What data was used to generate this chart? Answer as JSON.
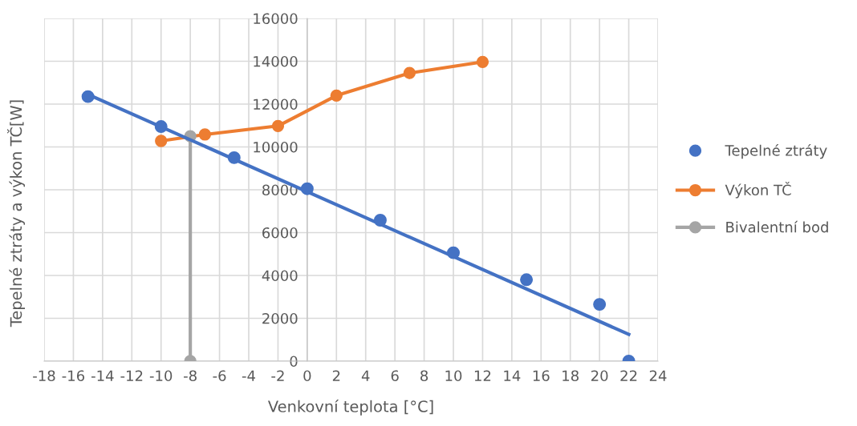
{
  "chart_data": {
    "type": "scatter",
    "xlabel": "Venkovní teplota [°C]",
    "ylabel": "Tepelné ztráty a výkon TČ[W]",
    "xlim": [
      -18,
      24
    ],
    "xticks": [
      -18,
      -16,
      -14,
      -12,
      -10,
      -8,
      -6,
      -4,
      -2,
      0,
      2,
      4,
      6,
      8,
      10,
      12,
      14,
      16,
      18,
      20,
      22,
      24
    ],
    "ylim": [
      0,
      16000
    ],
    "yticks": [
      0,
      2000,
      4000,
      6000,
      8000,
      10000,
      12000,
      14000,
      16000
    ],
    "grid": true,
    "legend": "right",
    "series": [
      {
        "name": "Tepelné ztráty",
        "color": "#4472c4",
        "marker": "circle",
        "x": [
          -15,
          -10,
          -5,
          0,
          5,
          10,
          15,
          20,
          22
        ],
        "values": [
          12350,
          10950,
          9500,
          8050,
          6580,
          5060,
          3800,
          2650,
          0
        ]
      },
      {
        "name": "Výkon TČ",
        "type": "line",
        "color": "#ed7d31",
        "marker": "circle",
        "x": [
          -10,
          -7,
          -2,
          2,
          7,
          12
        ],
        "values": [
          10280,
          10580,
          10980,
          12400,
          13450,
          13970
        ]
      },
      {
        "name": "Bivalentní bod",
        "type": "line",
        "color": "#a5a5a5",
        "marker": "circle",
        "x": [
          -8,
          -8
        ],
        "values": [
          0,
          10500
        ]
      },
      {
        "type": "line",
        "color": "#4472c4",
        "marker": "none",
        "x": [
          -15,
          22
        ],
        "values": [
          12450,
          1250
        ]
      }
    ]
  }
}
